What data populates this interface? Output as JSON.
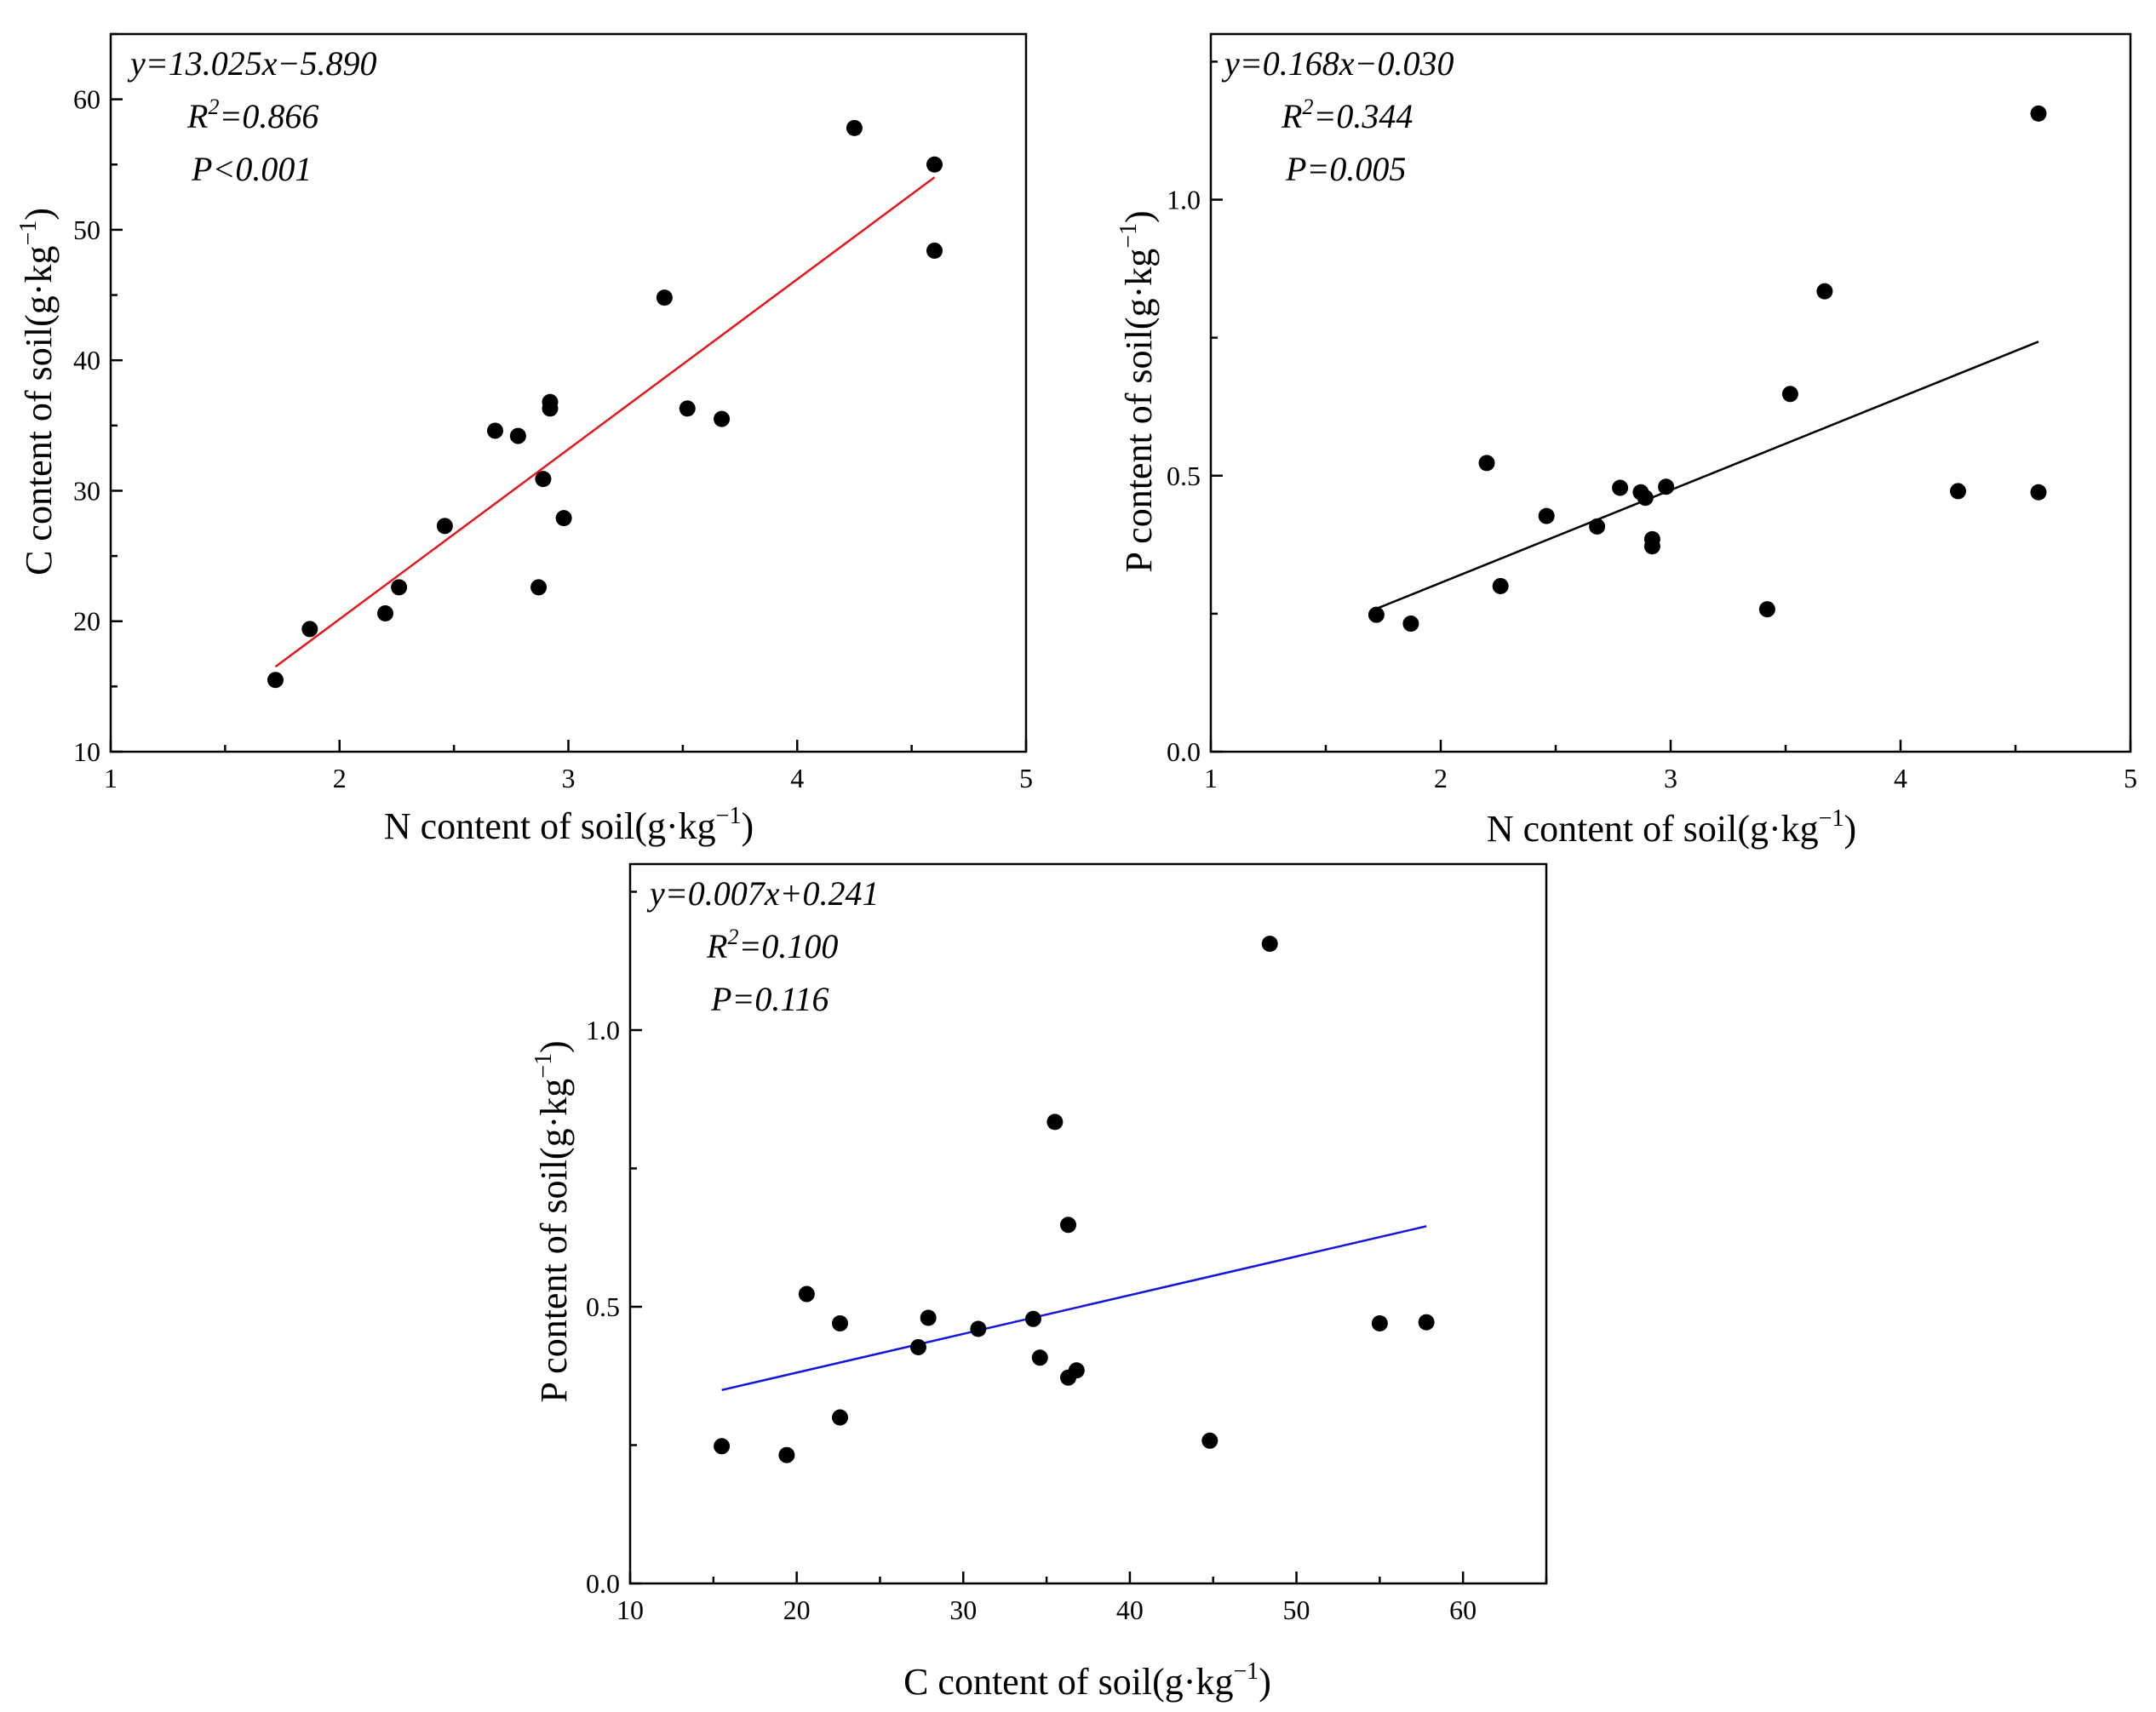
{
  "chart_data": [
    {
      "type": "scatter",
      "xlabel": "N content of soil(g·kg",
      "xlabel_sup": "−1",
      "xlabel_close": ")",
      "ylabel": "C content of soil(g·kg",
      "ylabel_sup": "−1",
      "ylabel_close": ")",
      "xlim": [
        1,
        5
      ],
      "ylim": [
        10,
        65
      ],
      "xticks": [
        1,
        2,
        3,
        4,
        5
      ],
      "yticks": [
        10,
        20,
        30,
        40,
        50,
        60
      ],
      "fit_color": "#e8161b",
      "fit_line": {
        "x": [
          1.72,
          4.6
        ]
      },
      "annotation": {
        "equation": "y=13.025x−5.890",
        "r2_prefix": "R",
        "r2_sup": "2",
        "r2_value": "=0.866",
        "p": "P<0.001"
      },
      "points": [
        [
          1.72,
          15.5
        ],
        [
          1.87,
          19.4
        ],
        [
          2.2,
          20.6
        ],
        [
          2.26,
          22.6
        ],
        [
          2.46,
          27.3
        ],
        [
          2.68,
          34.6
        ],
        [
          2.78,
          34.2
        ],
        [
          2.87,
          22.6
        ],
        [
          2.89,
          30.9
        ],
        [
          2.92,
          36.3
        ],
        [
          2.92,
          36.8
        ],
        [
          2.98,
          27.9
        ],
        [
          3.42,
          44.8
        ],
        [
          3.52,
          36.3
        ],
        [
          3.67,
          35.5
        ],
        [
          4.25,
          57.8
        ],
        [
          4.6,
          55.0
        ],
        [
          4.6,
          48.4
        ]
      ]
    },
    {
      "type": "scatter",
      "xlabel": "N content of soil(g·kg",
      "xlabel_sup": "−1",
      "xlabel_close": ")",
      "ylabel": "P content of soil(g·kg",
      "ylabel_sup": "−1",
      "ylabel_close": ")",
      "xlim": [
        1,
        5
      ],
      "ylim": [
        0,
        1.3
      ],
      "xticks": [
        1,
        2,
        3,
        4,
        5
      ],
      "yticks": [
        0.0,
        0.5,
        1.0
      ],
      "fit_color": "#000000",
      "fit_line": {
        "x": [
          1.72,
          4.6
        ]
      },
      "annotation": {
        "equation": "y=0.168x−0.030",
        "r2_prefix": "R",
        "r2_sup": "2",
        "r2_value": "=0.344",
        "p": "P=0.005"
      },
      "points": [
        [
          1.72,
          0.248
        ],
        [
          1.87,
          0.232
        ],
        [
          2.2,
          0.523
        ],
        [
          2.26,
          0.3
        ],
        [
          2.46,
          0.427
        ],
        [
          2.68,
          0.408
        ],
        [
          2.78,
          0.478
        ],
        [
          2.87,
          0.47
        ],
        [
          2.89,
          0.46
        ],
        [
          2.92,
          0.385
        ],
        [
          2.92,
          0.372
        ],
        [
          2.98,
          0.48
        ],
        [
          3.42,
          0.258
        ],
        [
          3.52,
          0.648
        ],
        [
          3.67,
          0.834
        ],
        [
          4.25,
          0.472
        ],
        [
          4.6,
          1.156
        ],
        [
          4.6,
          0.47
        ]
      ]
    },
    {
      "type": "scatter",
      "xlabel": "C content of soil(g·kg",
      "xlabel_sup": "−1",
      "xlabel_close": ")",
      "ylabel": "P content of soil(g·kg",
      "ylabel_sup": "−1",
      "ylabel_close": ")",
      "xlim": [
        10,
        65
      ],
      "ylim": [
        0,
        1.3
      ],
      "xticks": [
        10,
        20,
        30,
        40,
        50,
        60
      ],
      "yticks": [
        0.0,
        0.5,
        1.0
      ],
      "fit_color": "#1414e0",
      "fit_line": {
        "x": [
          15.5,
          57.8
        ]
      },
      "annotation": {
        "equation": "y=0.007x+0.241",
        "r2_prefix": "R",
        "r2_sup": "2",
        "r2_value": "=0.100",
        "p": "P=0.116"
      },
      "points": [
        [
          15.5,
          0.248
        ],
        [
          19.4,
          0.232
        ],
        [
          20.6,
          0.523
        ],
        [
          22.6,
          0.3
        ],
        [
          22.6,
          0.47
        ],
        [
          27.3,
          0.427
        ],
        [
          27.9,
          0.48
        ],
        [
          30.9,
          0.46
        ],
        [
          34.2,
          0.478
        ],
        [
          34.6,
          0.408
        ],
        [
          35.5,
          0.834
        ],
        [
          36.3,
          0.648
        ],
        [
          36.3,
          0.372
        ],
        [
          36.8,
          0.385
        ],
        [
          44.8,
          0.258
        ],
        [
          48.4,
          1.156
        ],
        [
          55.0,
          0.47
        ],
        [
          57.8,
          0.472
        ]
      ]
    }
  ]
}
